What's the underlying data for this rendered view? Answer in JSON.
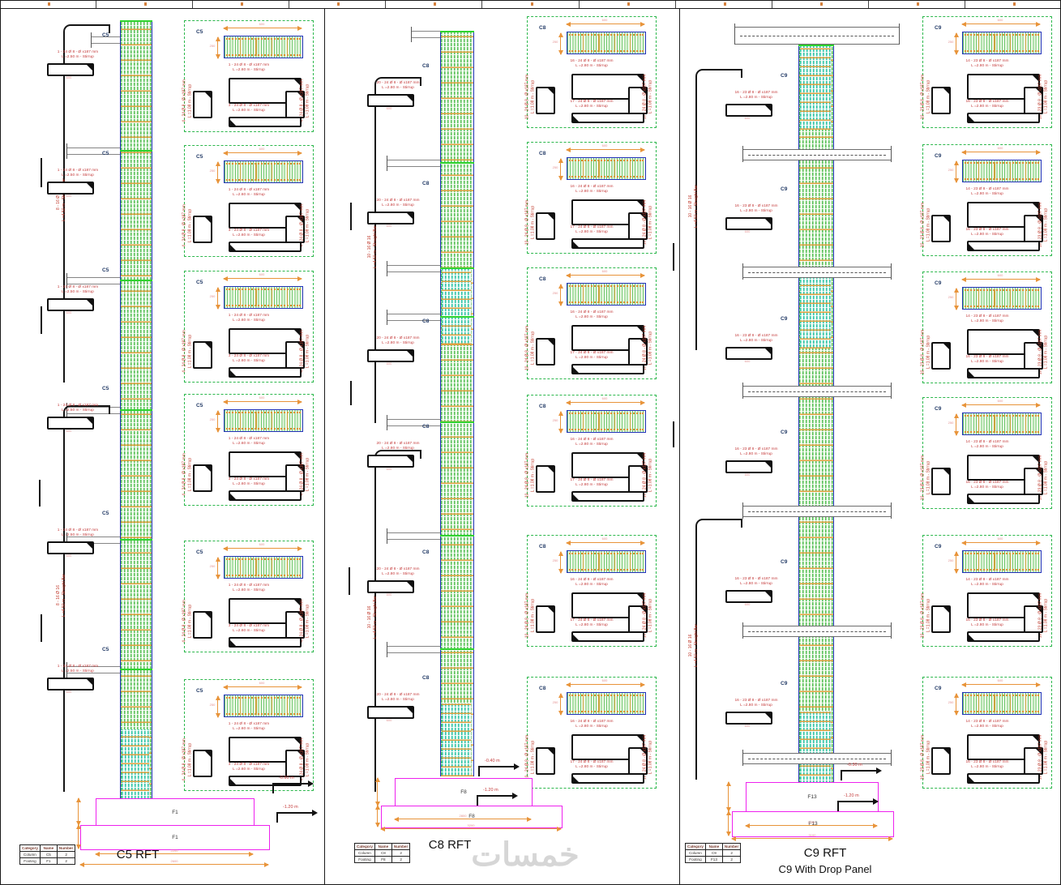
{
  "watermark": "خمسات",
  "table": {
    "headers": [
      "Category",
      "Name",
      "Number"
    ]
  },
  "strips": [
    {
      "title": "C5 RFT",
      "subtitle": "",
      "column_label": "C5",
      "footing_label": "F1",
      "levels": {
        "upper": "-0.60 m",
        "lower": "-1.20 m"
      },
      "table_rows": [
        [
          "Column",
          "C5",
          "2"
        ],
        [
          "Footing",
          "F1",
          "2"
        ]
      ],
      "bar_notes": [
        "8 - 16 Ø 16\nL =4.50 m - Straight Bar",
        "8 - 16 Ø 16\nL =4.50 m - Straight Bar"
      ],
      "story_note": "1 - 24 Ø 8 - Ø x187 mm\nL =2.50 m - Stirrup",
      "section_note": "1 - 24 Ø 8 - Ø x187 mm\nL =2.60 m - Stirrup",
      "section_note_2": "3 - 24 Ø 8 - Ø x187 mm\nL =2.60 m - Stirrup",
      "side_note": "4 - 24 Ø 8 - Ø x187 mm\nL =1.08 m - Stirrup",
      "dim_w": "600",
      "dim_h": "250",
      "foot_dims": [
        "2200",
        "2600"
      ]
    },
    {
      "title": "C8 RFT",
      "subtitle": "",
      "column_label": "C8",
      "footing_label": "F8",
      "levels": {
        "upper": "-0.40 m",
        "lower": "-1.20 m"
      },
      "table_rows": [
        [
          "Column",
          "C8",
          "2"
        ],
        [
          "Footing",
          "F8",
          "2"
        ]
      ],
      "bar_notes": [
        "10 - 16 Ø 16\nL =4.50 m - Straight Bar",
        "10 - 16 Ø 16\nL =4.50 m - Straight Bar"
      ],
      "story_note": "20 - 24 Ø 8 - Ø x187 mm\nL =2.80 m - Stirrup",
      "section_note": "16 - 24 Ø 8 - Ø x187 mm\nL =2.80 m - Stirrup",
      "section_note_2": "17 - 24 Ø 8 - Ø x187 mm\nL =2.80 m - Stirrup",
      "side_note": "10 - 24 Ø 8 - Ø x187 mm\nL =1.08 m - Stirrup",
      "dim_w": "600",
      "dim_h": "250",
      "foot_dims": [
        "2800",
        "3200"
      ]
    },
    {
      "title": "C9 RFT",
      "subtitle": "C9 With Drop Panel",
      "column_label": "C9",
      "footing_label": "F13",
      "levels": {
        "upper": "-0.30 m",
        "lower": "-1.20 m"
      },
      "table_rows": [
        [
          "Column",
          "C9",
          "2"
        ],
        [
          "Footing",
          "F13",
          "2"
        ]
      ],
      "bar_notes": [
        "10 - 16 Ø 16\nL =4.50 m - Straight Bar",
        "10 - 16 Ø 16\nL =4.50 m - Straight Bar"
      ],
      "story_note": "16 - 23 Ø 8 - Ø x187 mm\nL =2.80 m - Stirrup",
      "section_note": "14 - 23 Ø 8 - Ø x187 mm\nL =2.80 m - Stirrup",
      "section_note_2": "16 - 23 Ø 8 - Ø x187 mm\nL =2.80 m - Stirrup",
      "side_note": "10 - 23 Ø 8 - Ø x187 mm\nL =1.08 m - Stirrup",
      "dim_w": "600",
      "dim_h": "250",
      "foot_dims": [
        "2700",
        "3100"
      ]
    }
  ]
}
